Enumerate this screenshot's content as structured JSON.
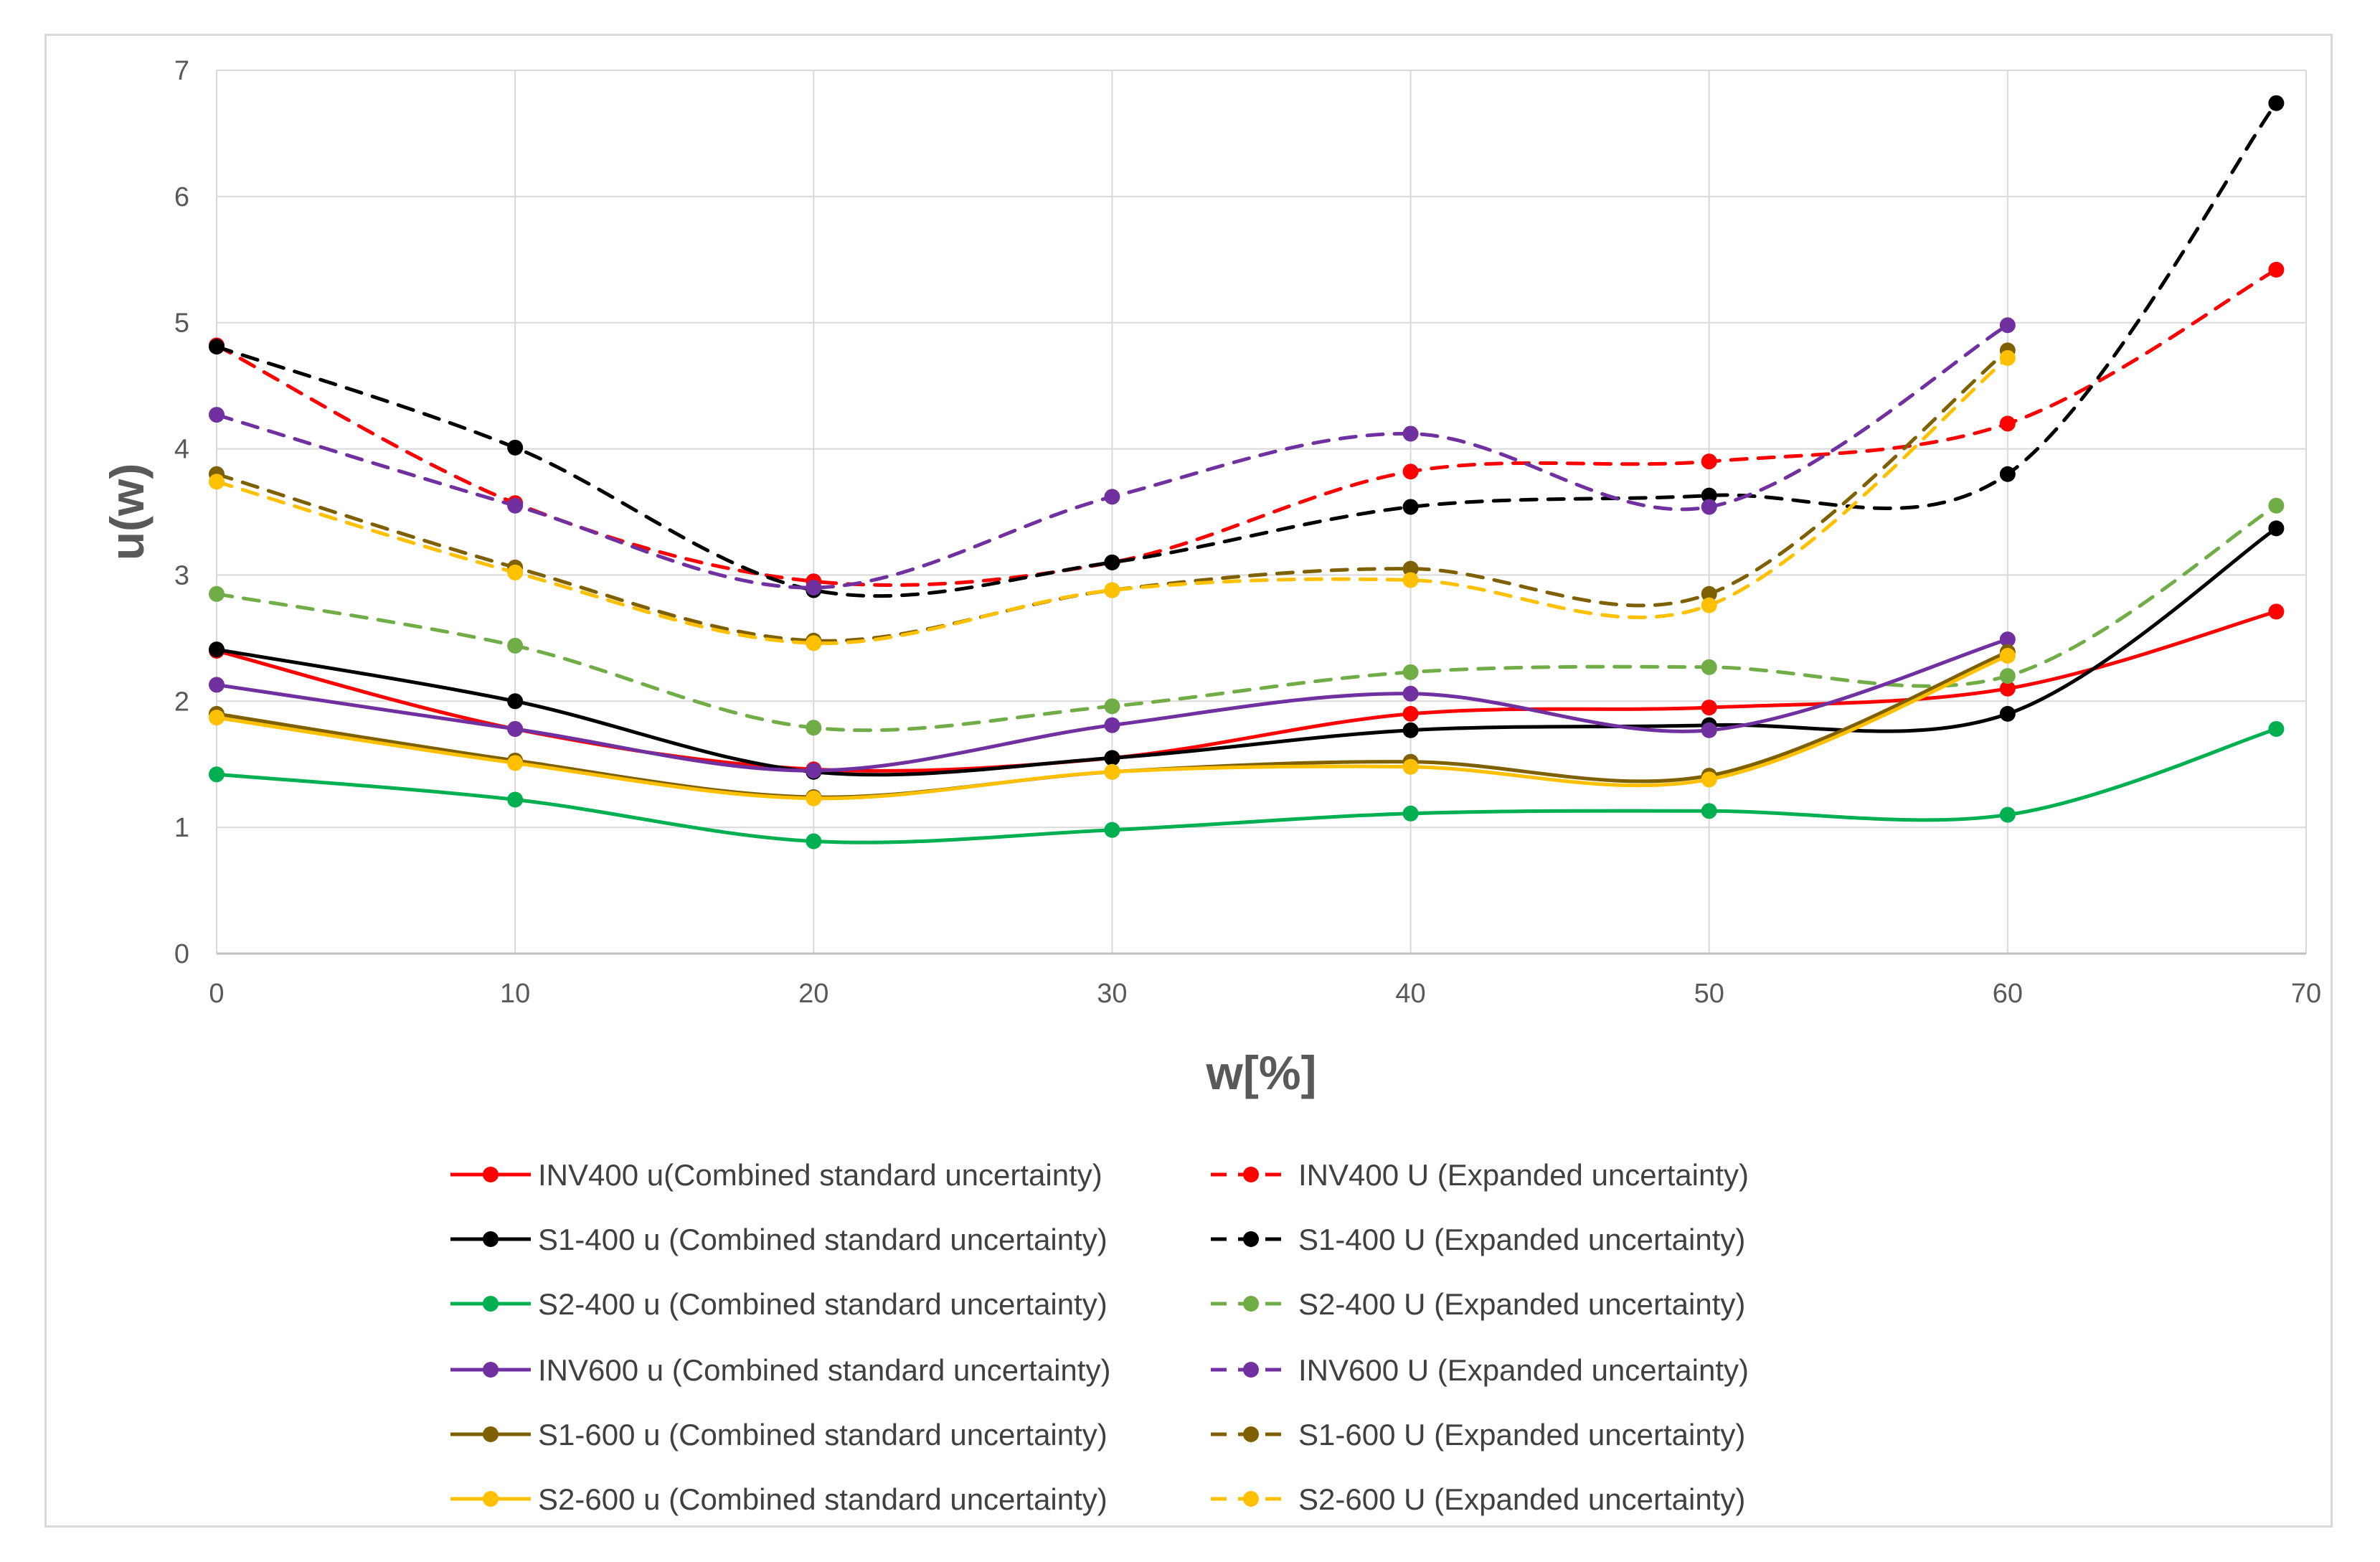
{
  "chart_data": {
    "type": "line",
    "title": "",
    "xlabel": "w[%]",
    "ylabel": "u(w)",
    "xlim": [
      0,
      70
    ],
    "ylim": [
      0,
      7
    ],
    "x_ticks": [
      "0",
      "10",
      "20",
      "30",
      "40",
      "50",
      "60",
      "70"
    ],
    "y_ticks": [
      "0",
      "1",
      "2",
      "3",
      "4",
      "5",
      "6",
      "7"
    ],
    "grid": true,
    "legend_position": "bottom",
    "series": [
      {
        "name": "INV400 u(Combined standard uncertainty)",
        "color": "#ff0000",
        "dash": "solid",
        "x": [
          0,
          10,
          20,
          30,
          40,
          50,
          60,
          69
        ],
        "values": [
          2.4,
          1.78,
          1.46,
          1.55,
          1.9,
          1.95,
          2.1,
          2.71
        ]
      },
      {
        "name": "INV400 U (Expanded uncertainty)",
        "color": "#ff0000",
        "dash": "dashed",
        "x": [
          0,
          10,
          20,
          30,
          40,
          50,
          60,
          69
        ],
        "values": [
          4.82,
          3.57,
          2.95,
          3.1,
          3.82,
          3.9,
          4.2,
          5.42
        ]
      },
      {
        "name": "S1-400 u (Combined standard uncertainty)",
        "color": "#000000",
        "dash": "solid",
        "x": [
          0,
          10,
          20,
          30,
          40,
          50,
          60,
          69
        ],
        "values": [
          2.41,
          2.0,
          1.44,
          1.55,
          1.77,
          1.81,
          1.9,
          3.37
        ]
      },
      {
        "name": "S1-400 U (Expanded uncertainty)",
        "color": "#000000",
        "dash": "dashed",
        "x": [
          0,
          10,
          20,
          30,
          40,
          50,
          60,
          69
        ],
        "values": [
          4.81,
          4.01,
          2.88,
          3.1,
          3.54,
          3.63,
          3.8,
          6.74
        ]
      },
      {
        "name": "S2-400 u (Combined standard uncertainty)",
        "color": "#00b050",
        "dash": "solid",
        "x": [
          0,
          10,
          20,
          30,
          40,
          50,
          60,
          69
        ],
        "values": [
          1.42,
          1.22,
          0.89,
          0.98,
          1.11,
          1.13,
          1.1,
          1.78
        ]
      },
      {
        "name": "S2-400 U (Expanded uncertainty)",
        "color": "#70ad47",
        "dash": "dashed",
        "x": [
          0,
          10,
          20,
          30,
          40,
          50,
          60,
          69
        ],
        "values": [
          2.85,
          2.44,
          1.79,
          1.96,
          2.23,
          2.27,
          2.2,
          3.55
        ]
      },
      {
        "name": "INV600 u (Combined standard uncertainty)",
        "color": "#7030a0",
        "dash": "solid",
        "x": [
          0,
          10,
          20,
          30,
          40,
          50,
          60
        ],
        "values": [
          2.13,
          1.78,
          1.45,
          1.81,
          2.06,
          1.77,
          2.49
        ]
      },
      {
        "name": "INV600 U (Expanded uncertainty)",
        "color": "#7030a0",
        "dash": "dashed",
        "x": [
          0,
          10,
          20,
          30,
          40,
          50,
          60
        ],
        "values": [
          4.27,
          3.55,
          2.9,
          3.62,
          4.12,
          3.54,
          4.98
        ]
      },
      {
        "name": "S1-600 u (Combined standard uncertainty)",
        "color": "#7f6000",
        "dash": "solid",
        "x": [
          0,
          10,
          20,
          30,
          40,
          50,
          60
        ],
        "values": [
          1.9,
          1.53,
          1.24,
          1.44,
          1.52,
          1.41,
          2.39
        ]
      },
      {
        "name": "S1-600 U (Expanded uncertainty)",
        "color": "#7f6000",
        "dash": "dashed",
        "x": [
          0,
          10,
          20,
          30,
          40,
          50,
          60
        ],
        "values": [
          3.8,
          3.06,
          2.48,
          2.88,
          3.05,
          2.85,
          4.78
        ]
      },
      {
        "name": "S2-600 u (Combined standard uncertainty)",
        "color": "#ffc000",
        "dash": "solid",
        "x": [
          0,
          10,
          20,
          30,
          40,
          50,
          60
        ],
        "values": [
          1.87,
          1.51,
          1.23,
          1.44,
          1.48,
          1.38,
          2.36
        ]
      },
      {
        "name": "S2-600 U (Expanded uncertainty)",
        "color": "#ffc000",
        "dash": "dashed",
        "x": [
          0,
          10,
          20,
          30,
          40,
          50,
          60
        ],
        "values": [
          3.74,
          3.02,
          2.46,
          2.88,
          2.96,
          2.76,
          4.72
        ]
      }
    ]
  }
}
